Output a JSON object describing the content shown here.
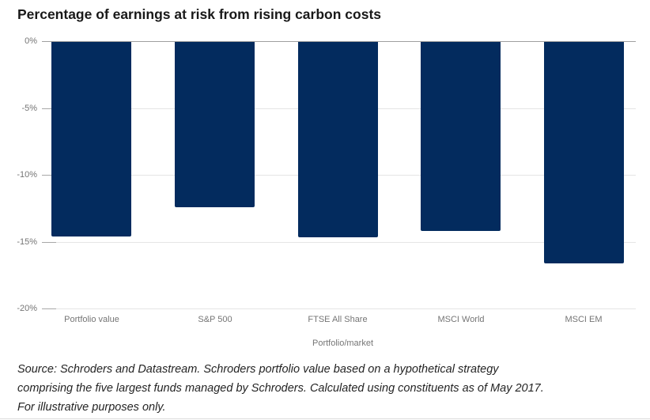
{
  "title": "Percentage of earnings at risk from rising carbon costs",
  "chart_data": {
    "type": "bar",
    "title": "Percentage of earnings at risk from rising carbon costs",
    "categories": [
      "Portfolio value",
      "S&P 500",
      "FTSE All Share",
      "MSCI World",
      "MSCI EM"
    ],
    "values": [
      -14.6,
      -12.4,
      -14.7,
      -14.2,
      -16.6
    ],
    "xlabel": "Portfolio/market",
    "ylabel": "",
    "ylim": [
      -20,
      0
    ],
    "yticks": [
      {
        "label": "0%",
        "value": 0
      },
      {
        "label": "-5%",
        "value": -5
      },
      {
        "label": "-10%",
        "value": -10
      },
      {
        "label": "-15%",
        "value": -15
      },
      {
        "label": "-20%",
        "value": -20
      }
    ],
    "grid": "horizontal",
    "legend": "none",
    "bar_color": "#032b5e"
  },
  "x_axis_title": "Portfolio/market",
  "source_note": {
    "lines": [
      "Source: Schroders and Datastream. Schroders portfolio value based on a hypothetical strategy",
      "comprising the five largest funds managed by Schroders. Calculated using constituents as of May 2017.",
      "For illustrative purposes only."
    ]
  },
  "colors": {
    "bar": "#032b5e",
    "title_text": "#191919",
    "axis_text": "#757575",
    "gridline": "#e5e5e5",
    "zero_line": "#9f9f9f",
    "source_text": "#242424",
    "bottom_rule": "#dcdcdc"
  }
}
